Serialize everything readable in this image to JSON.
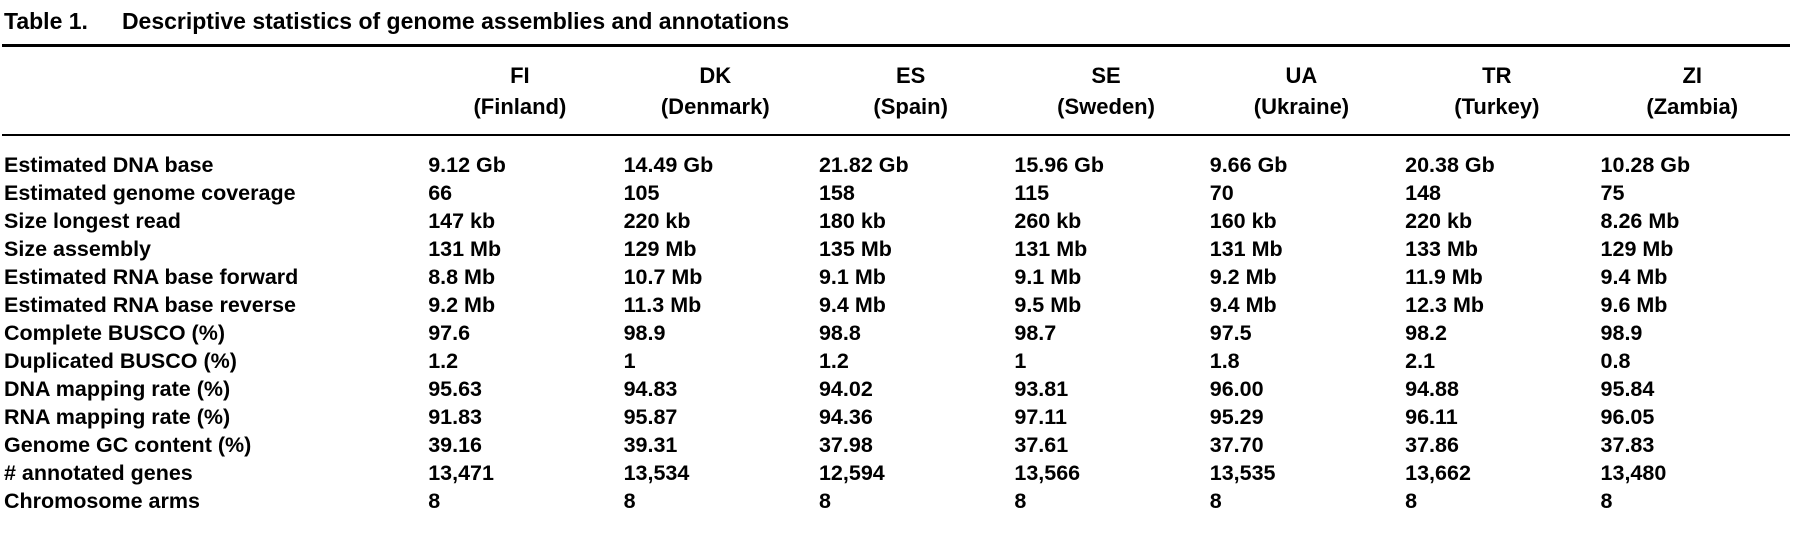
{
  "table": {
    "label": "Table 1.",
    "caption": "Descriptive statistics of genome assemblies and annotations",
    "columns": [
      {
        "code": "FI",
        "country": "(Finland)"
      },
      {
        "code": "DK",
        "country": "(Denmark)"
      },
      {
        "code": "ES",
        "country": "(Spain)"
      },
      {
        "code": "SE",
        "country": "(Sweden)"
      },
      {
        "code": "UA",
        "country": "(Ukraine)"
      },
      {
        "code": "TR",
        "country": "(Turkey)"
      },
      {
        "code": "ZI",
        "country": "(Zambia)"
      }
    ],
    "rows": [
      {
        "label": "Estimated DNA base",
        "values": [
          "9.12 Gb",
          "14.49 Gb",
          "21.82 Gb",
          "15.96 Gb",
          "9.66 Gb",
          "20.38 Gb",
          "10.28 Gb"
        ]
      },
      {
        "label": "Estimated genome coverage",
        "values": [
          "66",
          "105",
          "158",
          "115",
          "70",
          "148",
          "75"
        ]
      },
      {
        "label": "Size longest read",
        "values": [
          "147 kb",
          "220 kb",
          "180 kb",
          "260 kb",
          "160 kb",
          "220 kb",
          "8.26 Mb"
        ]
      },
      {
        "label": "Size assembly",
        "values": [
          "131 Mb",
          "129 Mb",
          "135 Mb",
          "131 Mb",
          "131 Mb",
          "133 Mb",
          "129 Mb"
        ]
      },
      {
        "label": "Estimated RNA base forward",
        "values": [
          "8.8 Mb",
          "10.7 Mb",
          "9.1 Mb",
          "9.1 Mb",
          "9.2 Mb",
          "11.9 Mb",
          "9.4 Mb"
        ]
      },
      {
        "label": "Estimated RNA base reverse",
        "values": [
          "9.2 Mb",
          "11.3 Mb",
          "9.4 Mb",
          "9.5 Mb",
          "9.4 Mb",
          "12.3 Mb",
          "9.6 Mb"
        ]
      },
      {
        "label": "Complete BUSCO (%)",
        "values": [
          "97.6",
          "98.9",
          "98.8",
          "98.7",
          "97.5",
          "98.2",
          "98.9"
        ]
      },
      {
        "label": "Duplicated BUSCO (%)",
        "values": [
          "1.2",
          "1",
          "1.2",
          "1",
          "1.8",
          "2.1",
          "0.8"
        ]
      },
      {
        "label": "DNA mapping rate (%)",
        "values": [
          "95.63",
          "94.83",
          "94.02",
          "93.81",
          "96.00",
          "94.88",
          "95.84"
        ]
      },
      {
        "label": "RNA mapping rate (%)",
        "values": [
          "91.83",
          "95.87",
          "94.36",
          "97.11",
          "95.29",
          "96.11",
          "96.05"
        ]
      },
      {
        "label": "Genome GC content (%)",
        "values": [
          "39.16",
          "39.31",
          "37.98",
          "37.61",
          "37.70",
          "37.86",
          "37.83"
        ]
      },
      {
        "label": "# annotated genes",
        "values": [
          "13,471",
          "13,534",
          "12,594",
          "13,566",
          "13,535",
          "13,662",
          "13,480"
        ]
      },
      {
        "label": "Chromosome arms",
        "values": [
          "8",
          "8",
          "8",
          "8",
          "8",
          "8",
          "8"
        ]
      }
    ]
  }
}
